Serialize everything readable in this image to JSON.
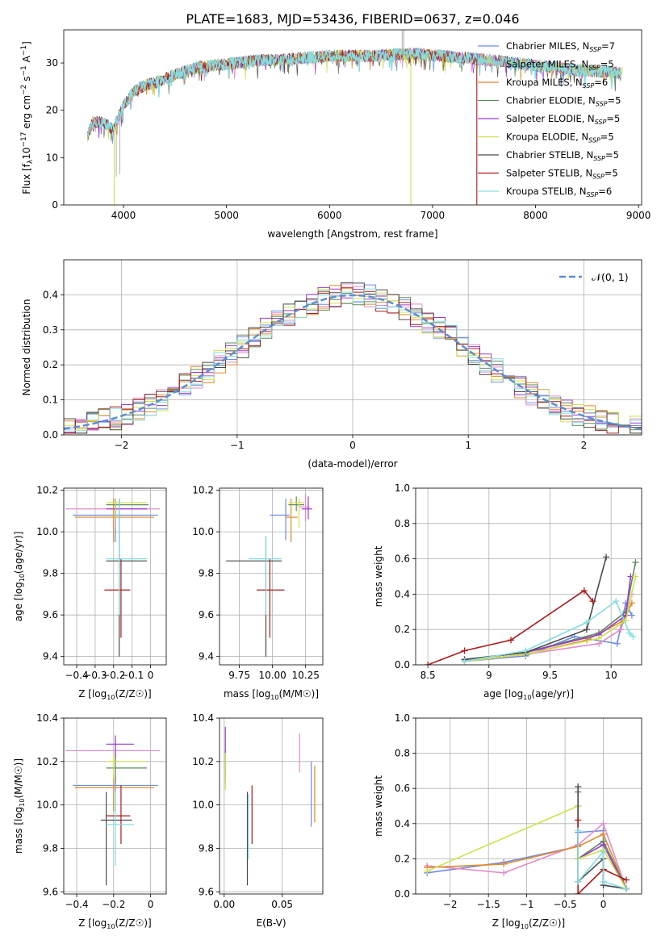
{
  "figure_title": "PLATE=1683, MJD=53436, FIBERID=0637, z=0.046",
  "legend_entries": [
    {
      "label": "Chabrier MILES, N",
      "sub": "SSP",
      "tail": "=7",
      "color": "#6d8ee6"
    },
    {
      "label": "Salpeter MILES, N",
      "sub": "SSP",
      "tail": "=5",
      "color": "#e28cc8"
    },
    {
      "label": "Kroupa MILES, N",
      "sub": "SSP",
      "tail": "=6",
      "color": "#e08a2c"
    },
    {
      "label": "Chabrier ELODIE, N",
      "sub": "SSP",
      "tail": "=5",
      "color": "#5d8a5d"
    },
    {
      "label": "Salpeter ELODIE, N",
      "sub": "SSP",
      "tail": "=5",
      "color": "#9b3bc9"
    },
    {
      "label": "Kroupa ELODIE, N",
      "sub": "SSP",
      "tail": "=5",
      "color": "#cfe04a"
    },
    {
      "label": "Chabrier STELIB, N",
      "sub": "SSP",
      "tail": "=5",
      "color": "#4a4a4a"
    },
    {
      "label": "Salpeter STELIB, N",
      "sub": "SSP",
      "tail": "=5",
      "color": "#a81c1c"
    },
    {
      "label": "Kroupa STELIB, N",
      "sub": "SSP",
      "tail": "=6",
      "color": "#86dde0"
    }
  ],
  "chart_data": [
    {
      "id": "spectrum",
      "type": "line",
      "xlabel": "wavelength [Angstrom, rest frame]",
      "ylabel": "Flux [f",
      "ylabel_parts": {
        "lam": "λ",
        "p1": "10",
        "e1": "−17",
        "p2": " erg cm",
        "e2": "−2",
        "p3": " s",
        "e3": "−1",
        "p4": " A",
        "e4": "−1",
        "p5": "]"
      },
      "xlim": [
        3420,
        9030
      ],
      "ylim": [
        0,
        37
      ],
      "xticks": [
        4000,
        5000,
        6000,
        7000,
        8000,
        9000
      ],
      "yticks": [
        0,
        10,
        20,
        30
      ],
      "continuum": {
        "x": [
          3650,
          3700,
          3800,
          3900,
          4000,
          4100,
          4200,
          4300,
          4500,
          4700,
          5000,
          5300,
          5600,
          6000,
          6400,
          6800,
          7200,
          7600,
          8000,
          8400,
          8800
        ],
        "y": [
          14.5,
          17.5,
          17.5,
          16.0,
          21.0,
          24.0,
          25.2,
          25.8,
          27.5,
          29.0,
          29.8,
          30.5,
          30.8,
          31.5,
          31.5,
          32.0,
          31.3,
          30.5,
          29.5,
          28.5,
          28.0
        ]
      },
      "dropouts": [
        {
          "series": "Kroupa ELODIE, NSSP=5",
          "x": 3910,
          "to": 0
        },
        {
          "series": "Kroupa ELODIE, NSSP=5",
          "x": 6790,
          "to": 0
        },
        {
          "series": "Salpeter STELIB, NSSP=5",
          "x": 7430,
          "to": 0
        }
      ]
    },
    {
      "id": "residuals",
      "type": "histogram",
      "xlabel": "(data-model)/error",
      "ylabel": "Normed distribution",
      "xlim": [
        -2.5,
        2.5
      ],
      "ylim": [
        0,
        0.5
      ],
      "xticks": [
        -2,
        -1,
        0,
        1,
        2
      ],
      "yticks": [
        0.0,
        0.1,
        0.2,
        0.3,
        0.4
      ],
      "grid": true,
      "legend": {
        "label": "𝒩(0, 1)",
        "placement": "top-right"
      },
      "bin_width": 0.1,
      "bin_start": -2.5
    },
    {
      "id": "age_vs_Z",
      "type": "errorbar",
      "xlabel": "Z [log10(Z/Z☉)]",
      "ylabel": "age  [log10(age/yr)]",
      "xlim": [
        -0.47,
        0.085
      ],
      "ylim": [
        9.36,
        10.21
      ],
      "xticks": [
        -0.4,
        -0.3,
        -0.2,
        -0.1,
        0.0
      ],
      "yticks": [
        9.4,
        9.6,
        9.8,
        10.0,
        10.2
      ],
      "grid": true,
      "points": [
        {
          "x": -0.19,
          "xlo": -0.42,
          "xhi": 0.04,
          "y": 10.08,
          "ylo": 9.95,
          "yhi": 10.16
        },
        {
          "x": -0.19,
          "xlo": -0.46,
          "xhi": 0.05,
          "y": 10.11,
          "ylo": 10.02,
          "yhi": 10.16
        },
        {
          "x": -0.2,
          "xlo": -0.41,
          "xhi": 0.02,
          "y": 10.07,
          "ylo": 9.95,
          "yhi": 10.16
        },
        {
          "x": -0.19,
          "xlo": -0.24,
          "xhi": -0.01,
          "y": 10.13,
          "ylo": 10.1,
          "yhi": 10.16
        },
        {
          "x": -0.19,
          "xlo": -0.24,
          "xhi": -0.02,
          "y": 10.11,
          "ylo": 10.06,
          "yhi": 10.16
        },
        {
          "x": -0.19,
          "xlo": -0.24,
          "xhi": -0.02,
          "y": 10.14,
          "ylo": 10.06,
          "yhi": 10.16
        },
        {
          "x": -0.17,
          "xlo": -0.24,
          "xhi": -0.02,
          "y": 9.86,
          "ylo": 9.4,
          "yhi": 10.16
        },
        {
          "x": -0.16,
          "xlo": -0.25,
          "xhi": -0.11,
          "y": 9.72,
          "ylo": 9.49,
          "yhi": 9.87
        },
        {
          "x": -0.17,
          "xlo": -0.24,
          "xhi": -0.02,
          "y": 9.87,
          "ylo": 9.6,
          "yhi": 10.16
        }
      ]
    },
    {
      "id": "age_vs_mass",
      "type": "errorbar",
      "xlabel": "mass [log10(M/M☉)]",
      "xlim": [
        9.6,
        10.38
      ],
      "ylim": [
        9.36,
        10.21
      ],
      "xticks": [
        9.75,
        10.0,
        10.25
      ],
      "xticklabels": [
        "9.75",
        "10.00",
        "10.25"
      ],
      "yticks": [
        9.4,
        9.6,
        9.8,
        10.0,
        10.2
      ],
      "grid": true,
      "points": [
        {
          "x": 10.1,
          "xlo": 9.98,
          "xhi": 10.13,
          "y": 10.08,
          "ylo": 9.96,
          "yhi": 10.16
        },
        {
          "x": 10.25,
          "xlo": 10.2,
          "xhi": 10.28,
          "y": 10.12,
          "ylo": 10.05,
          "yhi": 10.18
        },
        {
          "x": 10.14,
          "xlo": 10.1,
          "xhi": 10.19,
          "y": 10.07,
          "ylo": 9.95,
          "yhi": 10.16
        },
        {
          "x": 10.18,
          "xlo": 10.12,
          "xhi": 10.24,
          "y": 10.13,
          "ylo": 10.1,
          "yhi": 10.17
        },
        {
          "x": 10.27,
          "xlo": 10.22,
          "xhi": 10.3,
          "y": 10.11,
          "ylo": 10.06,
          "yhi": 10.17
        },
        {
          "x": 10.2,
          "xlo": 10.12,
          "xhi": 10.24,
          "y": 10.14,
          "ylo": 10.02,
          "yhi": 10.16
        },
        {
          "x": 9.95,
          "xlo": 9.65,
          "xhi": 10.07,
          "y": 9.86,
          "ylo": 9.4,
          "yhi": 9.98
        },
        {
          "x": 9.98,
          "xlo": 9.88,
          "xhi": 10.09,
          "y": 9.72,
          "ylo": 9.49,
          "yhi": 9.87
        },
        {
          "x": 9.95,
          "xlo": 9.82,
          "xhi": 10.07,
          "y": 9.87,
          "ylo": 9.6,
          "yhi": 9.98
        }
      ]
    },
    {
      "id": "weight_vs_age",
      "type": "line",
      "xlabel": "age  [log10(age/yr)]",
      "ylabel": "mass weight",
      "xlim": [
        8.4,
        10.25
      ],
      "ylim": [
        0,
        1.0
      ],
      "xticks": [
        8.5,
        9.0,
        9.5,
        10.0
      ],
      "yticks": [
        0.0,
        0.2,
        0.4,
        0.6,
        0.8,
        1.0
      ],
      "grid": true,
      "series": [
        {
          "name": "Chabrier MILES, NSSP=7",
          "color": "#6d8ee6",
          "x": [
            8.8,
            9.3,
            9.7,
            10.05,
            10.12,
            10.17
          ],
          "y": [
            0.02,
            0.05,
            0.16,
            0.12,
            0.35,
            0.28
          ]
        },
        {
          "name": "Salpeter MILES, NSSP=5",
          "color": "#e28cc8",
          "x": [
            8.8,
            9.3,
            9.9,
            10.08,
            10.17
          ],
          "y": [
            0.02,
            0.06,
            0.12,
            0.2,
            0.4
          ]
        },
        {
          "name": "Kroupa MILES, NSSP=6",
          "color": "#e08a2c",
          "x": [
            8.8,
            9.3,
            9.8,
            10.1,
            10.17
          ],
          "y": [
            0.02,
            0.06,
            0.14,
            0.25,
            0.35
          ]
        },
        {
          "name": "Chabrier ELODIE, NSSP=5",
          "color": "#5d8a5d",
          "x": [
            8.8,
            9.3,
            9.9,
            10.12,
            10.2
          ],
          "y": [
            0.03,
            0.07,
            0.18,
            0.3,
            0.58
          ]
        },
        {
          "name": "Salpeter ELODIE, NSSP=5",
          "color": "#9b3bc9",
          "x": [
            8.8,
            9.3,
            9.9,
            10.12,
            10.16
          ],
          "y": [
            0.03,
            0.07,
            0.17,
            0.28,
            0.5
          ]
        },
        {
          "name": "Kroupa ELODIE, NSSP=5",
          "color": "#cfe04a",
          "x": [
            8.8,
            9.3,
            9.9,
            10.12,
            10.2
          ],
          "y": [
            0.02,
            0.06,
            0.15,
            0.25,
            0.5
          ]
        },
        {
          "name": "Chabrier STELIB, NSSP=5",
          "color": "#4a4a4a",
          "x": [
            8.8,
            9.3,
            9.8,
            9.96
          ],
          "y": [
            0.03,
            0.07,
            0.2,
            0.61
          ]
        },
        {
          "name": "Salpeter STELIB, NSSP=5",
          "color": "#a81c1c",
          "x": [
            8.5,
            8.8,
            9.18,
            9.78,
            9.85
          ],
          "y": [
            0.0,
            0.08,
            0.14,
            0.42,
            0.36
          ]
        },
        {
          "name": "Kroupa STELIB, NSSP=6",
          "color": "#86dde0",
          "x": [
            8.8,
            9.3,
            9.8,
            10.04,
            10.15,
            10.18
          ],
          "y": [
            0.02,
            0.08,
            0.24,
            0.36,
            0.18,
            0.16
          ]
        }
      ]
    },
    {
      "id": "mass_vs_Z",
      "type": "errorbar",
      "xlabel": "Z [log10(Z/Z☉)]",
      "ylabel": "mass [log10(M/M☉)]",
      "xlim": [
        -0.47,
        0.085
      ],
      "ylim": [
        9.59,
        10.4
      ],
      "xticks": [
        -0.4,
        -0.2,
        0.0
      ],
      "yticks": [
        9.6,
        9.8,
        10.0,
        10.2,
        10.4
      ],
      "grid": true,
      "points": [
        {
          "x": -0.19,
          "xlo": -0.42,
          "xhi": 0.04,
          "y": 10.09,
          "ylo": 9.97,
          "yhi": 10.13
        },
        {
          "x": -0.19,
          "xlo": -0.46,
          "xhi": 0.05,
          "y": 10.25,
          "ylo": 10.2,
          "yhi": 10.3
        },
        {
          "x": -0.2,
          "xlo": -0.41,
          "xhi": 0.02,
          "y": 10.08,
          "ylo": 9.97,
          "yhi": 10.14
        },
        {
          "x": -0.19,
          "xlo": -0.24,
          "xhi": -0.02,
          "y": 10.17,
          "ylo": 10.1,
          "yhi": 10.24
        },
        {
          "x": -0.19,
          "xlo": -0.24,
          "xhi": -0.09,
          "y": 10.28,
          "ylo": 10.22,
          "yhi": 10.32
        },
        {
          "x": -0.2,
          "xlo": -0.24,
          "xhi": -0.02,
          "y": 10.2,
          "ylo": 10.12,
          "yhi": 10.24
        },
        {
          "x": -0.24,
          "xlo": -0.27,
          "xhi": -0.1,
          "y": 9.93,
          "ylo": 9.63,
          "yhi": 10.06
        },
        {
          "x": -0.16,
          "xlo": -0.24,
          "xhi": -0.11,
          "y": 9.95,
          "ylo": 9.82,
          "yhi": 10.09
        },
        {
          "x": -0.19,
          "xlo": -0.24,
          "xhi": -0.09,
          "y": 9.91,
          "ylo": 9.72,
          "yhi": 10.06
        }
      ]
    },
    {
      "id": "mass_vs_EBV",
      "type": "errorbar",
      "xlabel": "E(B-V)",
      "xlim": [
        -0.004,
        0.085
      ],
      "ylim": [
        9.59,
        10.4
      ],
      "xticks": [
        0.0,
        0.05
      ],
      "xticklabels": [
        "0.00",
        "0.05"
      ],
      "yticks": [
        9.6,
        9.8,
        10.0,
        10.2,
        10.4
      ],
      "grid": true,
      "points": [
        {
          "x": 0.075,
          "y": 10.09,
          "ylo": 9.9,
          "yhi": 10.2
        },
        {
          "x": 0.065,
          "y": 10.25,
          "ylo": 10.15,
          "yhi": 10.33
        },
        {
          "x": 0.078,
          "y": 10.08,
          "ylo": 9.92,
          "yhi": 10.18
        },
        {
          "x": 0.001,
          "y": 10.17,
          "ylo": 10.1,
          "yhi": 10.25
        },
        {
          "x": 0.001,
          "y": 10.28,
          "ylo": 10.23,
          "yhi": 10.36
        },
        {
          "x": 0.001,
          "y": 10.2,
          "ylo": 10.07,
          "yhi": 10.24
        },
        {
          "x": 0.02,
          "y": 9.93,
          "ylo": 9.63,
          "yhi": 10.06
        },
        {
          "x": 0.024,
          "y": 9.95,
          "ylo": 9.82,
          "yhi": 10.09
        },
        {
          "x": 0.021,
          "y": 9.91,
          "ylo": 9.75,
          "yhi": 10.05
        }
      ]
    },
    {
      "id": "weight_vs_Z",
      "type": "line",
      "xlabel": "Z [log10(Z/Z☉)]",
      "ylabel": "mass weight",
      "xlim": [
        -2.45,
        0.5
      ],
      "ylim": [
        0,
        1.0
      ],
      "xticks": [
        -2.0,
        -1.5,
        -1.0,
        -0.5,
        0.0
      ],
      "yticks": [
        0.0,
        0.2,
        0.4,
        0.6,
        0.8,
        1.0
      ],
      "grid": true,
      "series": [
        {
          "name": "Chabrier MILES, NSSP=7",
          "color": "#6d8ee6",
          "x": [
            -2.3,
            -1.3,
            -0.33,
            -0.33,
            0.0,
            0.0,
            0.3
          ],
          "y": [
            0.12,
            0.18,
            0.27,
            0.35,
            0.36,
            0.05,
            0.03
          ]
        },
        {
          "name": "Salpeter MILES, NSSP=5",
          "color": "#e28cc8",
          "x": [
            -2.3,
            -1.3,
            -0.33,
            0.0,
            0.3
          ],
          "y": [
            0.16,
            0.12,
            0.28,
            0.4,
            0.03
          ]
        },
        {
          "name": "Kroupa MILES, NSSP=6",
          "color": "#e08a2c",
          "x": [
            -2.3,
            -1.3,
            -0.33,
            0.0,
            0.3
          ],
          "y": [
            0.15,
            0.17,
            0.27,
            0.34,
            0.03
          ]
        },
        {
          "name": "Chabrier ELODIE, NSSP=5",
          "color": "#5d8a5d",
          "x": [
            -0.33,
            -0.33,
            0.0,
            0.3
          ],
          "y": [
            0.58,
            0.2,
            0.3,
            0.03
          ]
        },
        {
          "name": "Salpeter ELODIE, NSSP=5",
          "color": "#9b3bc9",
          "x": [
            -0.33,
            -0.33,
            0.0,
            0.3
          ],
          "y": [
            0.5,
            0.2,
            0.28,
            0.03
          ]
        },
        {
          "name": "Kroupa ELODIE, NSSP=5",
          "color": "#cfe04a",
          "x": [
            -2.3,
            -0.33,
            -0.33,
            0.0,
            0.3
          ],
          "y": [
            0.13,
            0.5,
            0.2,
            0.25,
            0.03
          ]
        },
        {
          "name": "Chabrier STELIB, NSSP=5",
          "color": "#4a4a4a",
          "x": [
            -0.33,
            -0.33,
            0.0,
            0.0,
            0.3
          ],
          "y": [
            0.61,
            0.07,
            0.2,
            0.05,
            0.03
          ]
        },
        {
          "name": "Salpeter STELIB, NSSP=5",
          "color": "#a81c1c",
          "x": [
            -0.33,
            -0.33,
            0.0,
            0.3
          ],
          "y": [
            0.42,
            0.0,
            0.14,
            0.08
          ]
        },
        {
          "name": "Kroupa STELIB, NSSP=6",
          "color": "#86dde0",
          "x": [
            -0.33,
            -0.33,
            0.0,
            0.0,
            0.3
          ],
          "y": [
            0.36,
            0.07,
            0.24,
            0.07,
            0.03
          ]
        }
      ]
    }
  ]
}
